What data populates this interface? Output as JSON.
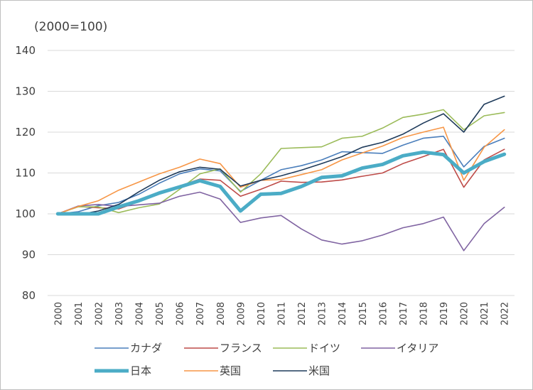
{
  "chart_data": {
    "type": "line",
    "unit_label": "(2000=100)",
    "x": [
      "2000",
      "2001",
      "2002",
      "2003",
      "2004",
      "2005",
      "2006",
      "2007",
      "2008",
      "2009",
      "2010",
      "2011",
      "2012",
      "2013",
      "2014",
      "2015",
      "2016",
      "2017",
      "2018",
      "2019",
      "2020",
      "2021",
      "2022"
    ],
    "ylim": [
      80,
      140
    ],
    "yticks": [
      80,
      90,
      100,
      110,
      120,
      130,
      140
    ],
    "grid": true,
    "legend_position": "bottom",
    "series": [
      {
        "name": "カナダ",
        "color": "#4a7ebb",
        "width": 1.6,
        "values": [
          100.0,
          100.5,
          102.0,
          102.8,
          104.8,
          107.5,
          109.8,
          111.0,
          110.5,
          105.5,
          108.2,
          110.8,
          111.8,
          113.2,
          115.2,
          115.0,
          114.8,
          116.8,
          118.5,
          119.0,
          111.5,
          116.5,
          118.5
        ]
      },
      {
        "name": "フランス",
        "color": "#be4b48",
        "width": 1.6,
        "values": [
          100.0,
          101.8,
          101.5,
          101.2,
          103.0,
          104.8,
          106.8,
          108.5,
          108.2,
          104.3,
          106.0,
          108.0,
          107.7,
          107.8,
          108.3,
          109.2,
          110.0,
          112.3,
          114.0,
          115.8,
          106.5,
          113.2,
          115.8
        ]
      },
      {
        "name": "ドイツ",
        "color": "#9bbb59",
        "width": 1.6,
        "values": [
          100.0,
          101.7,
          101.7,
          100.3,
          101.5,
          102.4,
          106.0,
          109.8,
          111.0,
          105.3,
          109.8,
          116.0,
          116.2,
          116.4,
          118.5,
          119.0,
          121.0,
          123.6,
          124.4,
          125.5,
          120.6,
          124.0,
          124.8
        ]
      },
      {
        "name": "イタリア",
        "color": "#8064a2",
        "width": 1.6,
        "values": [
          100.0,
          101.9,
          102.3,
          101.8,
          102.2,
          102.6,
          104.3,
          105.3,
          103.6,
          97.9,
          99.0,
          99.6,
          96.3,
          93.6,
          92.6,
          93.4,
          94.8,
          96.6,
          97.6,
          99.2,
          91.0,
          97.6,
          101.6
        ]
      },
      {
        "name": "日本",
        "color": "#4bacc6",
        "width": 5,
        "values": [
          100.0,
          100.0,
          100.0,
          101.7,
          103.2,
          105.1,
          106.6,
          108.1,
          106.7,
          100.7,
          104.8,
          105.0,
          106.7,
          108.9,
          109.3,
          111.2,
          112.1,
          114.2,
          115.1,
          114.5,
          110.0,
          112.8,
          114.6
        ]
      },
      {
        "name": "英国",
        "color": "#f79646",
        "width": 1.6,
        "values": [
          100.0,
          101.8,
          103.2,
          105.8,
          107.8,
          109.8,
          111.4,
          113.4,
          112.3,
          106.5,
          108.2,
          108.4,
          109.6,
          110.8,
          113.2,
          114.9,
          116.6,
          118.7,
          120.0,
          121.2,
          108.2,
          116.3,
          120.6
        ]
      },
      {
        "name": "米国",
        "color": "#1f3b5b",
        "width": 1.6,
        "values": [
          100.0,
          99.8,
          100.7,
          102.3,
          105.4,
          108.2,
          110.3,
          111.4,
          110.9,
          106.8,
          108.2,
          109.3,
          110.7,
          112.3,
          114.0,
          116.3,
          117.5,
          119.5,
          122.2,
          124.5,
          120.0,
          126.8,
          128.8
        ]
      }
    ]
  }
}
